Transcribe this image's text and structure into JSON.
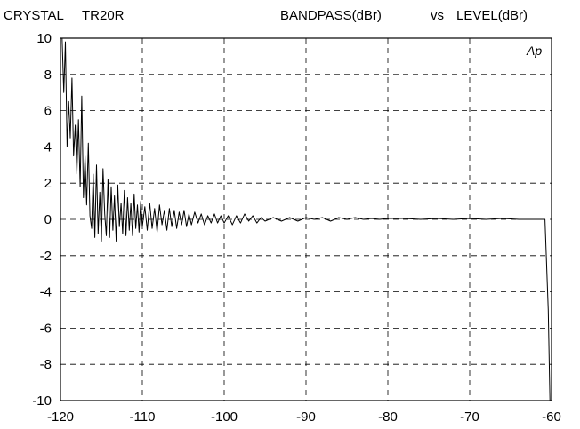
{
  "header": {
    "device": "CRYSTAL",
    "model": "TR20R",
    "measurement": "BANDPASS(dBr)",
    "vs": "vs",
    "versus": "LEVEL(dBr)"
  },
  "chart_data": {
    "type": "line",
    "title": "BANDPASS(dBr) vs LEVEL(dBr)",
    "xlabel": "",
    "ylabel": "",
    "xlim": [
      -120,
      -60
    ],
    "ylim": [
      -10,
      10
    ],
    "xticks": [
      -120,
      -110,
      -100,
      -90,
      -80,
      -70,
      -60
    ],
    "yticks": [
      10,
      8,
      6,
      4,
      2,
      0,
      -2,
      -4,
      -6,
      -8,
      -10
    ],
    "grid": true,
    "annotation": "Ap",
    "series": [
      {
        "color": "#000000",
        "x": [
          -119.8,
          -119.6,
          -119.4,
          -119.2,
          -119.0,
          -118.8,
          -118.6,
          -118.4,
          -118.2,
          -118.0,
          -117.8,
          -117.6,
          -117.4,
          -117.2,
          -117.0,
          -116.8,
          -116.6,
          -116.4,
          -116.2,
          -116.0,
          -115.8,
          -115.6,
          -115.4,
          -115.2,
          -115.0,
          -114.8,
          -114.6,
          -114.4,
          -114.2,
          -114.0,
          -113.8,
          -113.6,
          -113.4,
          -113.2,
          -113.0,
          -112.8,
          -112.6,
          -112.4,
          -112.2,
          -112.0,
          -111.8,
          -111.6,
          -111.4,
          -111.2,
          -111.0,
          -110.8,
          -110.6,
          -110.4,
          -110.2,
          -110.0,
          -109.7,
          -109.4,
          -109.1,
          -108.8,
          -108.5,
          -108.2,
          -107.9,
          -107.6,
          -107.3,
          -107.0,
          -106.7,
          -106.4,
          -106.1,
          -105.8,
          -105.5,
          -105.2,
          -104.9,
          -104.6,
          -104.3,
          -104.0,
          -103.6,
          -103.2,
          -102.8,
          -102.4,
          -102.0,
          -101.6,
          -101.2,
          -100.8,
          -100.4,
          -100.0,
          -99.5,
          -99.0,
          -98.5,
          -98.0,
          -97.5,
          -97.0,
          -96.5,
          -96.0,
          -95.5,
          -95.0,
          -94.0,
          -93.0,
          -92.0,
          -91.0,
          -90.0,
          -89.0,
          -88.0,
          -87.0,
          -86.0,
          -85.0,
          -84.0,
          -83.0,
          -82.0,
          -81.0,
          -80.0,
          -78.0,
          -76.0,
          -74.0,
          -72.0,
          -70.0,
          -68.0,
          -66.0,
          -64.0,
          -62.0,
          -60.8,
          -60.4,
          -60.2,
          -60.1
        ],
        "y": [
          10.0,
          7.0,
          9.8,
          4.0,
          6.5,
          4.5,
          7.8,
          3.5,
          5.2,
          2.5,
          5.5,
          1.8,
          6.8,
          1.2,
          3.5,
          0.8,
          4.2,
          0.2,
          -0.5,
          2.5,
          -1.0,
          3.0,
          -0.8,
          1.5,
          -1.2,
          2.8,
          0.3,
          -0.9,
          2.2,
          -1.0,
          1.8,
          -0.6,
          1.3,
          -1.2,
          1.9,
          -0.4,
          0.9,
          -0.8,
          1.6,
          -0.9,
          1.2,
          -0.6,
          0.9,
          -0.9,
          1.4,
          -0.5,
          0.8,
          -0.7,
          1.0,
          -0.4,
          0.7,
          -0.6,
          0.9,
          -0.5,
          0.6,
          -0.7,
          0.8,
          -0.3,
          0.5,
          -0.6,
          0.6,
          -0.4,
          0.5,
          -0.5,
          0.4,
          -0.3,
          0.5,
          -0.4,
          0.3,
          -0.3,
          0.4,
          -0.2,
          0.3,
          -0.3,
          0.2,
          -0.2,
          0.3,
          -0.2,
          0.2,
          -0.2,
          0.2,
          -0.3,
          0.2,
          -0.2,
          0.3,
          -0.1,
          0.2,
          -0.2,
          0.1,
          -0.1,
          0.1,
          -0.1,
          0.1,
          -0.1,
          0.1,
          0.0,
          0.1,
          -0.1,
          0.1,
          0.0,
          0.1,
          0.0,
          0.05,
          0.0,
          0.05,
          0.05,
          0.0,
          0.05,
          0.0,
          0.05,
          0.0,
          0.05,
          0.0,
          0.0,
          0.0,
          -5.0,
          -10.0,
          -10.0
        ]
      }
    ]
  }
}
